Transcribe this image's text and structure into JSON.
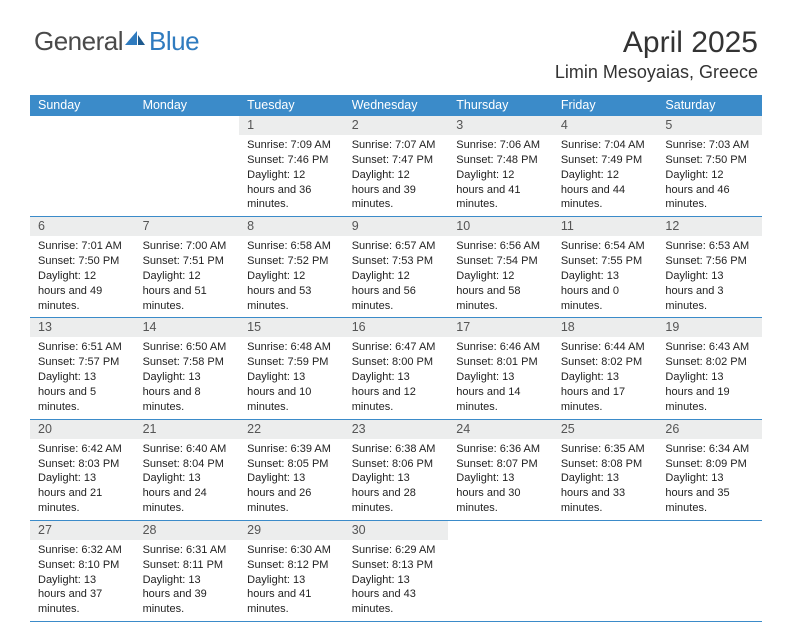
{
  "logo": {
    "text1": "General",
    "text2": "Blue"
  },
  "title": "April 2025",
  "location": "Limin Mesoyaias, Greece",
  "day_names": [
    "Sunday",
    "Monday",
    "Tuesday",
    "Wednesday",
    "Thursday",
    "Friday",
    "Saturday"
  ],
  "colors": {
    "header_bg": "#3b8bc9",
    "daynum_bg": "#eceded",
    "rule": "#3b8bc9",
    "logo_blue": "#2f7bbf"
  },
  "weeks": [
    [
      {
        "day": "",
        "sunrise": "",
        "sunset": "",
        "daylight": ""
      },
      {
        "day": "",
        "sunrise": "",
        "sunset": "",
        "daylight": ""
      },
      {
        "day": "1",
        "sunrise": "Sunrise: 7:09 AM",
        "sunset": "Sunset: 7:46 PM",
        "daylight": "Daylight: 12 hours and 36 minutes."
      },
      {
        "day": "2",
        "sunrise": "Sunrise: 7:07 AM",
        "sunset": "Sunset: 7:47 PM",
        "daylight": "Daylight: 12 hours and 39 minutes."
      },
      {
        "day": "3",
        "sunrise": "Sunrise: 7:06 AM",
        "sunset": "Sunset: 7:48 PM",
        "daylight": "Daylight: 12 hours and 41 minutes."
      },
      {
        "day": "4",
        "sunrise": "Sunrise: 7:04 AM",
        "sunset": "Sunset: 7:49 PM",
        "daylight": "Daylight: 12 hours and 44 minutes."
      },
      {
        "day": "5",
        "sunrise": "Sunrise: 7:03 AM",
        "sunset": "Sunset: 7:50 PM",
        "daylight": "Daylight: 12 hours and 46 minutes."
      }
    ],
    [
      {
        "day": "6",
        "sunrise": "Sunrise: 7:01 AM",
        "sunset": "Sunset: 7:50 PM",
        "daylight": "Daylight: 12 hours and 49 minutes."
      },
      {
        "day": "7",
        "sunrise": "Sunrise: 7:00 AM",
        "sunset": "Sunset: 7:51 PM",
        "daylight": "Daylight: 12 hours and 51 minutes."
      },
      {
        "day": "8",
        "sunrise": "Sunrise: 6:58 AM",
        "sunset": "Sunset: 7:52 PM",
        "daylight": "Daylight: 12 hours and 53 minutes."
      },
      {
        "day": "9",
        "sunrise": "Sunrise: 6:57 AM",
        "sunset": "Sunset: 7:53 PM",
        "daylight": "Daylight: 12 hours and 56 minutes."
      },
      {
        "day": "10",
        "sunrise": "Sunrise: 6:56 AM",
        "sunset": "Sunset: 7:54 PM",
        "daylight": "Daylight: 12 hours and 58 minutes."
      },
      {
        "day": "11",
        "sunrise": "Sunrise: 6:54 AM",
        "sunset": "Sunset: 7:55 PM",
        "daylight": "Daylight: 13 hours and 0 minutes."
      },
      {
        "day": "12",
        "sunrise": "Sunrise: 6:53 AM",
        "sunset": "Sunset: 7:56 PM",
        "daylight": "Daylight: 13 hours and 3 minutes."
      }
    ],
    [
      {
        "day": "13",
        "sunrise": "Sunrise: 6:51 AM",
        "sunset": "Sunset: 7:57 PM",
        "daylight": "Daylight: 13 hours and 5 minutes."
      },
      {
        "day": "14",
        "sunrise": "Sunrise: 6:50 AM",
        "sunset": "Sunset: 7:58 PM",
        "daylight": "Daylight: 13 hours and 8 minutes."
      },
      {
        "day": "15",
        "sunrise": "Sunrise: 6:48 AM",
        "sunset": "Sunset: 7:59 PM",
        "daylight": "Daylight: 13 hours and 10 minutes."
      },
      {
        "day": "16",
        "sunrise": "Sunrise: 6:47 AM",
        "sunset": "Sunset: 8:00 PM",
        "daylight": "Daylight: 13 hours and 12 minutes."
      },
      {
        "day": "17",
        "sunrise": "Sunrise: 6:46 AM",
        "sunset": "Sunset: 8:01 PM",
        "daylight": "Daylight: 13 hours and 14 minutes."
      },
      {
        "day": "18",
        "sunrise": "Sunrise: 6:44 AM",
        "sunset": "Sunset: 8:02 PM",
        "daylight": "Daylight: 13 hours and 17 minutes."
      },
      {
        "day": "19",
        "sunrise": "Sunrise: 6:43 AM",
        "sunset": "Sunset: 8:02 PM",
        "daylight": "Daylight: 13 hours and 19 minutes."
      }
    ],
    [
      {
        "day": "20",
        "sunrise": "Sunrise: 6:42 AM",
        "sunset": "Sunset: 8:03 PM",
        "daylight": "Daylight: 13 hours and 21 minutes."
      },
      {
        "day": "21",
        "sunrise": "Sunrise: 6:40 AM",
        "sunset": "Sunset: 8:04 PM",
        "daylight": "Daylight: 13 hours and 24 minutes."
      },
      {
        "day": "22",
        "sunrise": "Sunrise: 6:39 AM",
        "sunset": "Sunset: 8:05 PM",
        "daylight": "Daylight: 13 hours and 26 minutes."
      },
      {
        "day": "23",
        "sunrise": "Sunrise: 6:38 AM",
        "sunset": "Sunset: 8:06 PM",
        "daylight": "Daylight: 13 hours and 28 minutes."
      },
      {
        "day": "24",
        "sunrise": "Sunrise: 6:36 AM",
        "sunset": "Sunset: 8:07 PM",
        "daylight": "Daylight: 13 hours and 30 minutes."
      },
      {
        "day": "25",
        "sunrise": "Sunrise: 6:35 AM",
        "sunset": "Sunset: 8:08 PM",
        "daylight": "Daylight: 13 hours and 33 minutes."
      },
      {
        "day": "26",
        "sunrise": "Sunrise: 6:34 AM",
        "sunset": "Sunset: 8:09 PM",
        "daylight": "Daylight: 13 hours and 35 minutes."
      }
    ],
    [
      {
        "day": "27",
        "sunrise": "Sunrise: 6:32 AM",
        "sunset": "Sunset: 8:10 PM",
        "daylight": "Daylight: 13 hours and 37 minutes."
      },
      {
        "day": "28",
        "sunrise": "Sunrise: 6:31 AM",
        "sunset": "Sunset: 8:11 PM",
        "daylight": "Daylight: 13 hours and 39 minutes."
      },
      {
        "day": "29",
        "sunrise": "Sunrise: 6:30 AM",
        "sunset": "Sunset: 8:12 PM",
        "daylight": "Daylight: 13 hours and 41 minutes."
      },
      {
        "day": "30",
        "sunrise": "Sunrise: 6:29 AM",
        "sunset": "Sunset: 8:13 PM",
        "daylight": "Daylight: 13 hours and 43 minutes."
      },
      {
        "day": "",
        "sunrise": "",
        "sunset": "",
        "daylight": ""
      },
      {
        "day": "",
        "sunrise": "",
        "sunset": "",
        "daylight": ""
      },
      {
        "day": "",
        "sunrise": "",
        "sunset": "",
        "daylight": ""
      }
    ]
  ]
}
